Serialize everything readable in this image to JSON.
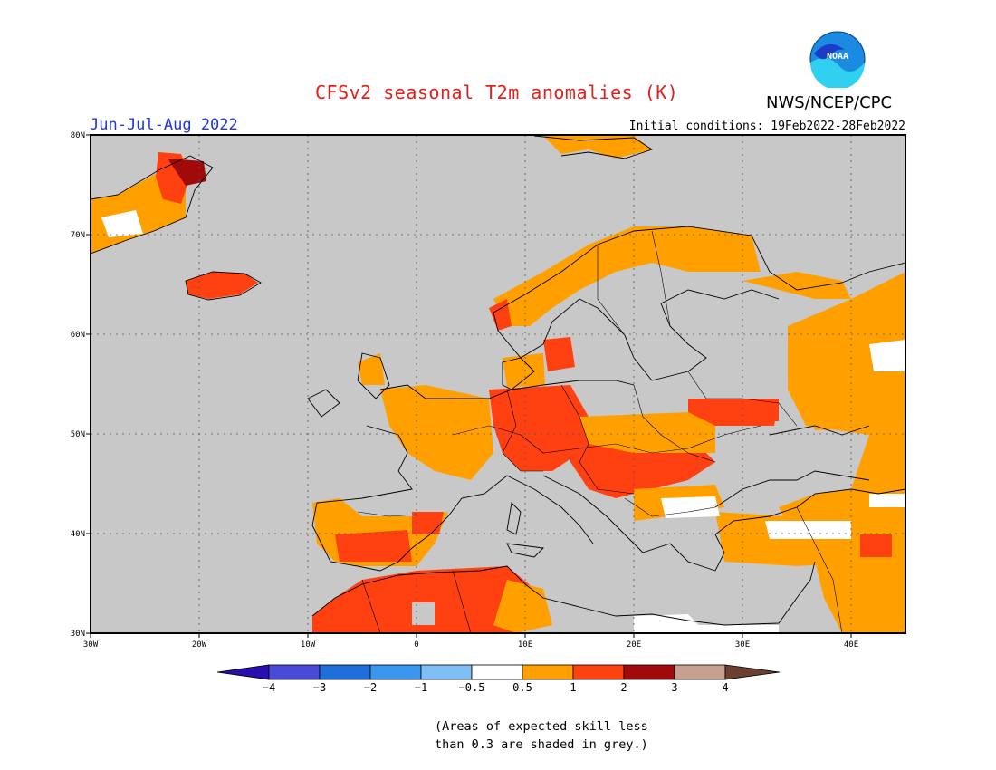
{
  "title": "CFSv2 seasonal T2m anomalies (K)",
  "season": "Jun-Jul-Aug 2022",
  "agency": "NWS/NCEP/CPC",
  "logo_text": "NOAA",
  "initial_conditions": "Initial conditions: 19Feb2022-28Feb2022",
  "map": {
    "lat_ticks": [
      "30N",
      "40N",
      "50N",
      "60N",
      "70N",
      "80N"
    ],
    "lon_ticks": [
      "30W",
      "20W",
      "10W",
      "0",
      "10E",
      "20E",
      "30E",
      "40E"
    ],
    "grid": true,
    "land_mask_color": "#c8c8c8"
  },
  "colorbar": {
    "colors": [
      "#2a0fb0",
      "#4a4ad8",
      "#1e6fd9",
      "#3a96ef",
      "#7fbff5",
      "#ffffff",
      "#ffa000",
      "#ff4010",
      "#a00a0a",
      "#c8a090",
      "#6a4030"
    ],
    "tick_labels": [
      "-4",
      "-3",
      "-2",
      "-1",
      "-0.5",
      "0.5",
      "1",
      "2",
      "3",
      "4"
    ]
  },
  "note_line1": "(Areas of expected skill less",
  "note_line2": "than 0.3 are shaded in grey.)"
}
